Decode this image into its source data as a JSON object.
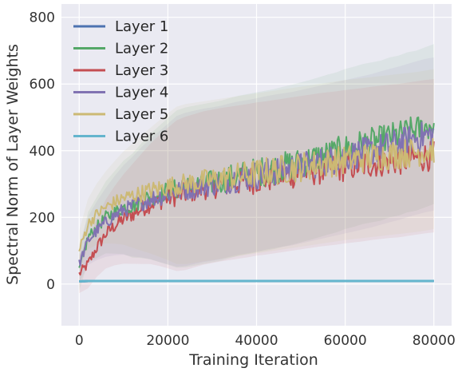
{
  "chart_data": {
    "type": "line",
    "xlabel": "Training Iteration",
    "ylabel": "Spectral Norm of Layer Weights",
    "xlim": [
      -4000,
      84000
    ],
    "ylim": [
      -125,
      840
    ],
    "xticks": [
      0,
      20000,
      40000,
      60000,
      80000
    ],
    "yticks": [
      0,
      200,
      400,
      600,
      800
    ],
    "grid": true,
    "legend_position": "top-left",
    "x": [
      0,
      2000,
      4000,
      6000,
      8000,
      10000,
      12000,
      14000,
      16000,
      18000,
      20000,
      22000,
      24000,
      26000,
      28000,
      30000,
      32000,
      34000,
      36000,
      38000,
      40000,
      42000,
      44000,
      46000,
      48000,
      50000,
      52000,
      54000,
      56000,
      58000,
      60000,
      62000,
      64000,
      66000,
      68000,
      70000,
      72000,
      74000,
      76000,
      78000,
      80000
    ],
    "series": [
      {
        "name": "Layer 1",
        "color": "#4c72b0",
        "shade": 0,
        "values": [
          8,
          9,
          9,
          9,
          9,
          9,
          9,
          9,
          9,
          9,
          9,
          9,
          9,
          9,
          9,
          9,
          9,
          9,
          9,
          9,
          9,
          9,
          9,
          9,
          9,
          9,
          9,
          9,
          9,
          9,
          9,
          9,
          9,
          9,
          9,
          9,
          9,
          9,
          9,
          9,
          9
        ]
      },
      {
        "name": "Layer 2",
        "color": "#55a868",
        "shade": 240,
        "values": [
          40,
          140,
          170,
          200,
          215,
          230,
          235,
          250,
          262,
          270,
          278,
          285,
          290,
          295,
          300,
          305,
          310,
          318,
          325,
          330,
          335,
          340,
          345,
          352,
          358,
          365,
          372,
          380,
          388,
          395,
          405,
          412,
          420,
          425,
          430,
          440,
          445,
          455,
          460,
          470,
          480
        ]
      },
      {
        "name": "Layer 3",
        "color": "#c44e52",
        "shade": 230,
        "values": [
          30,
          60,
          110,
          150,
          175,
          195,
          210,
          225,
          240,
          250,
          258,
          265,
          272,
          280,
          288,
          293,
          298,
          302,
          306,
          310,
          315,
          318,
          322,
          326,
          330,
          334,
          338,
          342,
          345,
          348,
          352,
          355,
          358,
          362,
          365,
          368,
          370,
          374,
          378,
          382,
          385
        ]
      },
      {
        "name": "Layer 4",
        "color": "#8172b2",
        "shade": 230,
        "values": [
          60,
          130,
          160,
          185,
          205,
          222,
          232,
          245,
          255,
          262,
          270,
          278,
          284,
          290,
          296,
          300,
          305,
          312,
          318,
          322,
          327,
          333,
          338,
          342,
          346,
          352,
          358,
          364,
          370,
          376,
          382,
          388,
          394,
          400,
          408,
          415,
          422,
          430,
          438,
          445,
          450
        ]
      },
      {
        "name": "Layer 5",
        "color": "#ccb974",
        "shade": 240,
        "values": [
          100,
          180,
          210,
          230,
          245,
          258,
          265,
          272,
          280,
          286,
          292,
          296,
          300,
          304,
          308,
          312,
          316,
          320,
          324,
          328,
          332,
          336,
          340,
          344,
          348,
          352,
          356,
          360,
          364,
          368,
          372,
          375,
          378,
          381,
          384,
          387,
          390,
          393,
          396,
          400,
          405
        ]
      },
      {
        "name": "Layer 6",
        "color": "#64b5cd",
        "shade": 0,
        "values": [
          8,
          9,
          9,
          9,
          9,
          9,
          9,
          9,
          9,
          9,
          9,
          9,
          9,
          9,
          9,
          9,
          9,
          9,
          9,
          9,
          9,
          9,
          9,
          9,
          9,
          9,
          9,
          9,
          9,
          9,
          9,
          9,
          9,
          9,
          9,
          9,
          9,
          9,
          9,
          9,
          9
        ]
      }
    ]
  }
}
